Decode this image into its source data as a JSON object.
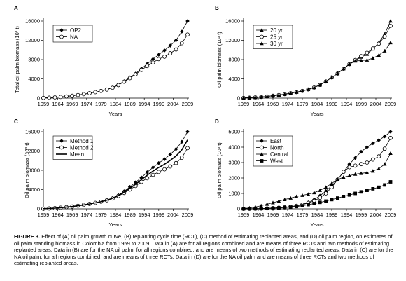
{
  "caption": {
    "label": "FIGURE 3.",
    "text": "Effect of (A) oil palm growth curve, (B) replanting cycle time (RCT), (C) method of estimating replanted areas, and (D) oil palm region, on estimates of oil palm standing biomass in Colombia from 1959 to 2009. Data in (A) are for all regions combined and are means of three RCTs and two methods of estimating replanted areas. Data in (B) are for the NA oil palm, for all regions combined, and are means of two methods of estimating replanted areas. Data in (C) are for the NA oil palm, for all regions combined, and are means of three RCTs. Data in (D) are for the NA oil palm and are means of three RCTs and two methods of estimating replanted areas."
  },
  "chart_data": [
    {
      "panel": "A",
      "type": "line",
      "xlabel": "Years",
      "ylabel": "Total oil palm biomass (10³ t)",
      "xlim": [
        1959,
        2009
      ],
      "ylim": [
        0,
        16000
      ],
      "xticks": [
        1959,
        1964,
        1969,
        1974,
        1979,
        1984,
        1989,
        1994,
        1999,
        2004,
        2009
      ],
      "yticks": [
        0,
        4000,
        8000,
        12000,
        16000
      ],
      "legend_position": "top-left",
      "series": [
        {
          "name": "OP2",
          "marker": "diamond-filled",
          "line": "solid",
          "x": [
            1959,
            1961,
            1963,
            1965,
            1967,
            1969,
            1971,
            1973,
            1975,
            1977,
            1979,
            1981,
            1983,
            1985,
            1987,
            1989,
            1991,
            1993,
            1995,
            1997,
            1999,
            2001,
            2003,
            2005,
            2007,
            2009
          ],
          "y": [
            30,
            80,
            150,
            240,
            350,
            480,
            640,
            820,
            1020,
            1240,
            1490,
            1800,
            2200,
            2800,
            3500,
            4300,
            5100,
            6100,
            7100,
            8100,
            9000,
            9900,
            10900,
            12000,
            13800,
            16000
          ]
        },
        {
          "name": "NA",
          "marker": "circle-open",
          "line": "solid",
          "x": [
            1959,
            1961,
            1963,
            1965,
            1967,
            1969,
            1971,
            1973,
            1975,
            1977,
            1979,
            1981,
            1983,
            1985,
            1987,
            1989,
            1991,
            1993,
            1995,
            1997,
            1999,
            2001,
            2003,
            2005,
            2007,
            2009
          ],
          "y": [
            30,
            80,
            150,
            240,
            350,
            480,
            640,
            820,
            1020,
            1240,
            1480,
            1780,
            2150,
            2700,
            3400,
            4150,
            4950,
            5850,
            6650,
            7400,
            8100,
            8600,
            9300,
            10100,
            11400,
            13200
          ]
        }
      ]
    },
    {
      "panel": "B",
      "type": "line",
      "xlabel": "Years",
      "ylabel": "Oil palm biomass (10³ t)",
      "xlim": [
        1959,
        2009
      ],
      "ylim": [
        0,
        16000
      ],
      "xticks": [
        1959,
        1964,
        1969,
        1974,
        1979,
        1984,
        1989,
        1994,
        1999,
        2004,
        2009
      ],
      "yticks": [
        0,
        4000,
        8000,
        12000,
        16000
      ],
      "legend_position": "top-left",
      "series": [
        {
          "name": "20 yr",
          "marker": "triangle-filled",
          "line": "solid",
          "x": [
            1959,
            1961,
            1963,
            1965,
            1967,
            1969,
            1971,
            1973,
            1975,
            1977,
            1979,
            1981,
            1983,
            1985,
            1987,
            1989,
            1991,
            1993,
            1995,
            1997,
            1999,
            2001,
            2003,
            2005,
            2007,
            2009
          ],
          "y": [
            30,
            80,
            150,
            240,
            350,
            480,
            640,
            820,
            1020,
            1240,
            1490,
            1800,
            2200,
            2750,
            3450,
            4300,
            5100,
            6100,
            7050,
            7900,
            8500,
            9100,
            10200,
            11500,
            13300,
            16000
          ]
        },
        {
          "name": "25 yr",
          "marker": "circle-open",
          "line": "solid",
          "x": [
            1959,
            1961,
            1963,
            1965,
            1967,
            1969,
            1971,
            1973,
            1975,
            1977,
            1979,
            1981,
            1983,
            1985,
            1987,
            1989,
            1991,
            1993,
            1995,
            1997,
            1999,
            2001,
            2003,
            2005,
            2007,
            2009
          ],
          "y": [
            30,
            80,
            150,
            240,
            350,
            480,
            640,
            820,
            1020,
            1240,
            1490,
            1800,
            2200,
            2750,
            3450,
            4300,
            5100,
            6100,
            7050,
            7900,
            8700,
            9400,
            10300,
            11300,
            12800,
            15000
          ]
        },
        {
          "name": "30 yr",
          "marker": "triangle-filled",
          "line": "solid",
          "x": [
            1959,
            1961,
            1963,
            1965,
            1967,
            1969,
            1971,
            1973,
            1975,
            1977,
            1979,
            1981,
            1983,
            1985,
            1987,
            1989,
            1991,
            1993,
            1995,
            1997,
            1999,
            2001,
            2003,
            2005,
            2007,
            2009
          ],
          "y": [
            30,
            80,
            150,
            240,
            350,
            480,
            640,
            820,
            1020,
            1240,
            1490,
            1800,
            2200,
            2750,
            3450,
            4300,
            5100,
            6100,
            7050,
            7700,
            7800,
            7900,
            8300,
            8900,
            9800,
            11500
          ]
        }
      ]
    },
    {
      "panel": "C",
      "type": "line",
      "xlabel": "Years",
      "ylabel": "Oil palm biomass (10³ t)",
      "xlim": [
        1959,
        2009
      ],
      "ylim": [
        0,
        16000
      ],
      "xticks": [
        1959,
        1964,
        1969,
        1974,
        1979,
        1984,
        1989,
        1994,
        1999,
        2004,
        2009
      ],
      "yticks": [
        0,
        4000,
        8000,
        12000,
        16000
      ],
      "legend_position": "top-left",
      "series": [
        {
          "name": "Method 1",
          "marker": "diamond-filled",
          "line": "solid",
          "x": [
            1959,
            1961,
            1963,
            1965,
            1967,
            1969,
            1971,
            1973,
            1975,
            1977,
            1979,
            1981,
            1983,
            1985,
            1987,
            1989,
            1991,
            1993,
            1995,
            1997,
            1999,
            2001,
            2003,
            2005,
            2007,
            2009
          ],
          "y": [
            30,
            80,
            150,
            240,
            350,
            480,
            640,
            820,
            1020,
            1240,
            1490,
            1800,
            2250,
            2850,
            3650,
            4550,
            5500,
            6500,
            7600,
            8600,
            9500,
            10300,
            11300,
            12400,
            13900,
            16000
          ]
        },
        {
          "name": "Method 2",
          "marker": "circle-open",
          "line": "solid",
          "x": [
            1959,
            1961,
            1963,
            1965,
            1967,
            1969,
            1971,
            1973,
            1975,
            1977,
            1979,
            1981,
            1983,
            1985,
            1987,
            1989,
            1991,
            1993,
            1995,
            1997,
            1999,
            2001,
            2003,
            2005,
            2007,
            2009
          ],
          "y": [
            30,
            80,
            150,
            240,
            350,
            480,
            640,
            820,
            1020,
            1240,
            1480,
            1770,
            2150,
            2650,
            3300,
            4000,
            4750,
            5600,
            6350,
            7050,
            7650,
            8200,
            8800,
            9500,
            10600,
            12600
          ]
        },
        {
          "name": "Mean",
          "marker": "none",
          "line": "solid-thick",
          "x": [
            1959,
            1961,
            1963,
            1965,
            1967,
            1969,
            1971,
            1973,
            1975,
            1977,
            1979,
            1981,
            1983,
            1985,
            1987,
            1989,
            1991,
            1993,
            1995,
            1997,
            1999,
            2001,
            2003,
            2005,
            2007,
            2009
          ],
          "y": [
            30,
            80,
            150,
            240,
            350,
            480,
            640,
            820,
            1020,
            1240,
            1485,
            1785,
            2200,
            2750,
            3475,
            4275,
            5125,
            6050,
            6975,
            7825,
            8575,
            9250,
            10050,
            10950,
            12250,
            14300
          ]
        }
      ]
    },
    {
      "panel": "D",
      "type": "line",
      "xlabel": "Years",
      "ylabel": "Oil palm biomass (10³ t)",
      "xlim": [
        1959,
        2009
      ],
      "ylim": [
        0,
        5000
      ],
      "xticks": [
        1959,
        1964,
        1969,
        1974,
        1979,
        1984,
        1989,
        1994,
        1999,
        2004,
        2009
      ],
      "yticks": [
        0,
        1000,
        2000,
        3000,
        4000,
        5000
      ],
      "legend_position": "top-left",
      "series": [
        {
          "name": "East",
          "marker": "diamond-filled",
          "line": "solid",
          "x": [
            1959,
            1961,
            1963,
            1965,
            1967,
            1969,
            1971,
            1973,
            1975,
            1977,
            1979,
            1981,
            1983,
            1985,
            1987,
            1989,
            1991,
            1993,
            1995,
            1997,
            1999,
            2001,
            2003,
            2005,
            2007,
            2009
          ],
          "y": [
            0,
            5,
            10,
            20,
            30,
            50,
            70,
            100,
            140,
            200,
            290,
            420,
            600,
            850,
            1150,
            1500,
            1900,
            2400,
            2900,
            3300,
            3700,
            4000,
            4250,
            4450,
            4700,
            5000
          ]
        },
        {
          "name": "North",
          "marker": "circle-open",
          "line": "solid",
          "x": [
            1959,
            1961,
            1963,
            1965,
            1967,
            1969,
            1971,
            1973,
            1975,
            1977,
            1979,
            1981,
            1983,
            1985,
            1987,
            1989,
            1991,
            1993,
            1995,
            1997,
            1999,
            2001,
            2003,
            2005,
            2007,
            2009
          ],
          "y": [
            0,
            5,
            10,
            20,
            30,
            50,
            70,
            100,
            140,
            190,
            270,
            380,
            520,
            720,
            1000,
            1400,
            1900,
            2400,
            2700,
            2800,
            2900,
            3000,
            3200,
            3400,
            3900,
            4600
          ]
        },
        {
          "name": "Central",
          "marker": "triangle-filled",
          "line": "solid",
          "x": [
            1959,
            1961,
            1963,
            1965,
            1967,
            1969,
            1971,
            1973,
            1975,
            1977,
            1979,
            1981,
            1983,
            1985,
            1987,
            1989,
            1991,
            1993,
            1995,
            1997,
            1999,
            2001,
            2003,
            2005,
            2007,
            2009
          ],
          "y": [
            20,
            60,
            120,
            200,
            300,
            400,
            500,
            600,
            700,
            800,
            880,
            950,
            1050,
            1200,
            1400,
            1650,
            1900,
            2050,
            2150,
            2250,
            2300,
            2350,
            2450,
            2600,
            2900,
            3600
          ]
        },
        {
          "name": "West",
          "marker": "square-filled",
          "line": "solid",
          "x": [
            1959,
            1961,
            1963,
            1965,
            1967,
            1969,
            1971,
            1973,
            1975,
            1977,
            1979,
            1981,
            1983,
            1985,
            1987,
            1989,
            1991,
            1993,
            1995,
            1997,
            1999,
            2001,
            2003,
            2005,
            2007,
            2009
          ],
          "y": [
            0,
            5,
            10,
            15,
            25,
            40,
            60,
            80,
            110,
            150,
            200,
            270,
            340,
            420,
            500,
            600,
            700,
            800,
            900,
            1000,
            1100,
            1200,
            1300,
            1400,
            1550,
            1750
          ]
        }
      ]
    }
  ]
}
